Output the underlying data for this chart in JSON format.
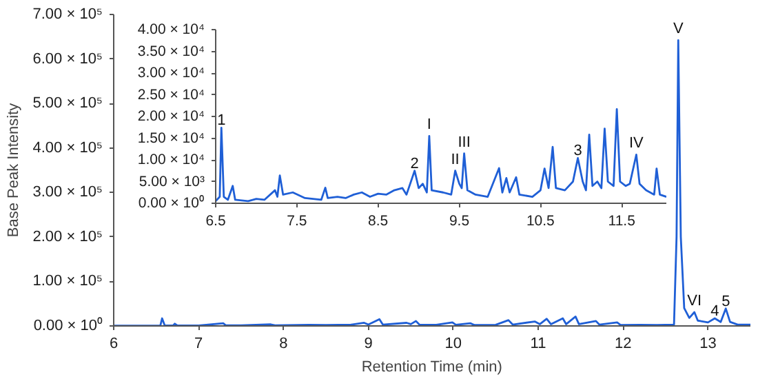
{
  "chart_data": [
    {
      "type": "line",
      "xlabel": "Retention Time (min)",
      "ylabel": "Base Peak Intensity",
      "xlim": [
        6,
        13.5
      ],
      "ylim": [
        0,
        700000
      ],
      "xticks": [
        6,
        7,
        8,
        9,
        10,
        11,
        12,
        13
      ],
      "yticks": [
        {
          "value": 0,
          "label": "0.00 × 10⁰"
        },
        {
          "value": 100000,
          "label": "1.00 × 10⁵"
        },
        {
          "value": 200000,
          "label": "2.00 × 10⁵"
        },
        {
          "value": 300000,
          "label": "3.00 × 10⁵"
        },
        {
          "value": 400000,
          "label": "4.00 × 10⁵"
        },
        {
          "value": 500000,
          "label": "5.00 × 10⁵"
        },
        {
          "value": 600000,
          "label": "6.00 × 10⁵"
        },
        {
          "value": 700000,
          "label": "7.00 × 10⁵"
        }
      ],
      "x": [
        6.0,
        6.5,
        6.55,
        6.57,
        6.6,
        6.7,
        6.72,
        6.75,
        7.0,
        7.29,
        7.32,
        7.5,
        7.85,
        7.9,
        8.3,
        8.5,
        8.8,
        8.95,
        9.0,
        9.13,
        9.17,
        9.45,
        9.5,
        9.56,
        9.6,
        9.8,
        9.99,
        10.03,
        10.2,
        10.25,
        10.5,
        10.65,
        10.7,
        10.96,
        11.02,
        11.1,
        11.15,
        11.29,
        11.33,
        11.44,
        11.48,
        11.68,
        11.72,
        11.93,
        11.97,
        12.2,
        12.4,
        12.6,
        12.63,
        12.65,
        12.68,
        12.72,
        12.78,
        12.84,
        12.88,
        13.0,
        13.08,
        13.15,
        13.21,
        13.26,
        13.35,
        13.5
      ],
      "series": [
        {
          "color": "#1f5fd6",
          "values": [
            500,
            500,
            1000,
            17000,
            1500,
            1000,
            5000,
            800,
            800,
            6000,
            1500,
            1500,
            3500,
            1200,
            2500,
            2000,
            3000,
            7000,
            3000,
            15000,
            3000,
            7000,
            4000,
            11000,
            3000,
            2500,
            8000,
            2500,
            6000,
            2000,
            2500,
            13000,
            3000,
            10000,
            4000,
            16000,
            4000,
            17000,
            4000,
            21000,
            4000,
            11000,
            3000,
            8000,
            2000,
            2500,
            2000,
            3000,
            200000,
            642000,
            200000,
            40000,
            18000,
            31000,
            12000,
            8000,
            17000,
            9000,
            39000,
            9000,
            3000,
            3000
          ]
        }
      ],
      "annotations": [
        {
          "text": "V",
          "x": 12.65,
          "y": 642000
        },
        {
          "text": "VI",
          "x": 12.84,
          "y": 31000
        },
        {
          "text": "4",
          "x": 13.08,
          "y": 17000
        },
        {
          "text": "5",
          "x": 13.21,
          "y": 39000
        }
      ]
    },
    {
      "type": "line",
      "xlim": [
        6.5,
        12.05
      ],
      "ylim": [
        0,
        40000
      ],
      "xticks": [
        6.5,
        7.5,
        8.5,
        9.5,
        10.5,
        11.5
      ],
      "yticks": [
        {
          "value": 0,
          "label": "0.00 × 10⁰"
        },
        {
          "value": 5000,
          "label": "5.00 × 10³"
        },
        {
          "value": 10000,
          "label": "1.00 × 10⁴"
        },
        {
          "value": 15000,
          "label": "1.50 × 10⁴"
        },
        {
          "value": 20000,
          "label": "2.00 × 10⁴"
        },
        {
          "value": 25000,
          "label": "2.50 × 10⁴"
        },
        {
          "value": 30000,
          "label": "3.00 × 10⁴"
        },
        {
          "value": 35000,
          "label": "3.50 × 10⁴"
        },
        {
          "value": 40000,
          "label": "4.00 × 10⁴"
        }
      ],
      "x": [
        6.5,
        6.55,
        6.57,
        6.6,
        6.65,
        6.71,
        6.74,
        6.9,
        7.0,
        7.1,
        7.23,
        7.26,
        7.29,
        7.33,
        7.45,
        7.6,
        7.8,
        7.85,
        7.88,
        8.0,
        8.1,
        8.2,
        8.3,
        8.4,
        8.5,
        8.6,
        8.7,
        8.8,
        8.85,
        8.95,
        9.0,
        9.05,
        9.1,
        9.13,
        9.16,
        9.3,
        9.4,
        9.45,
        9.5,
        9.53,
        9.56,
        9.6,
        9.7,
        9.85,
        9.99,
        10.03,
        10.08,
        10.12,
        10.2,
        10.24,
        10.4,
        10.5,
        10.55,
        10.6,
        10.65,
        10.69,
        10.8,
        10.9,
        10.96,
        11.02,
        11.06,
        11.1,
        11.14,
        11.2,
        11.25,
        11.29,
        11.33,
        11.4,
        11.44,
        11.48,
        11.55,
        11.6,
        11.68,
        11.72,
        11.8,
        11.9,
        11.93,
        11.97,
        12.05
      ],
      "series": [
        {
          "color": "#1f5fd6",
          "values": [
            500,
            1500,
            17400,
            1500,
            800,
            4000,
            800,
            500,
            1000,
            800,
            3000,
            1500,
            6400,
            2000,
            2500,
            1200,
            800,
            3600,
            1200,
            1500,
            1200,
            2000,
            2500,
            1500,
            2200,
            2000,
            3000,
            3500,
            2000,
            7500,
            3500,
            4500,
            2500,
            15500,
            3000,
            2500,
            2000,
            7500,
            4500,
            3500,
            11500,
            3000,
            2000,
            1500,
            8100,
            2500,
            5800,
            2500,
            6000,
            2000,
            1500,
            3000,
            8000,
            3500,
            13000,
            3500,
            3000,
            5000,
            10400,
            5000,
            3000,
            15800,
            4000,
            5000,
            3500,
            17200,
            5000,
            4000,
            21700,
            5000,
            4000,
            4500,
            11200,
            4500,
            3000,
            2000,
            8000,
            2000,
            1500
          ]
        }
      ],
      "annotations": [
        {
          "text": "1",
          "x": 6.57,
          "y": 17400
        },
        {
          "text": "2",
          "x": 8.95,
          "y": 7500
        },
        {
          "text": "I",
          "x": 9.13,
          "y": 15500
        },
        {
          "text": "II",
          "x": 9.45,
          "y": 7500
        },
        {
          "text": "III",
          "x": 9.56,
          "y": 11500
        },
        {
          "text": "3",
          "x": 10.96,
          "y": 10400
        },
        {
          "text": "IV",
          "x": 11.68,
          "y": 11200
        }
      ]
    }
  ]
}
